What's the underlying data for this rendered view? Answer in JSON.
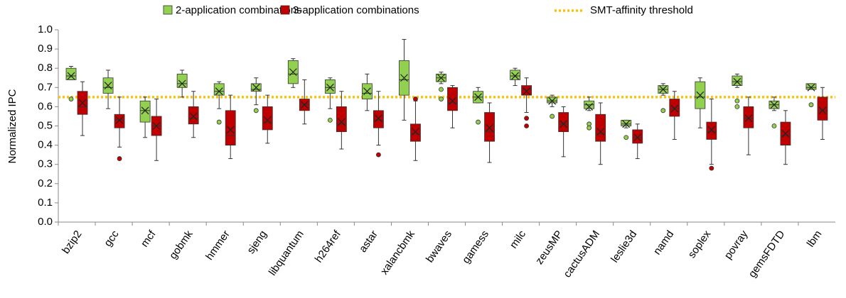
{
  "chart_data": {
    "type": "box",
    "y_label": "Normalized IPC",
    "categories": [
      "bzip2",
      "gcc",
      "mcf",
      "gobmk",
      "hmmer",
      "sjeng",
      "libquantum",
      "h264ref",
      "astar",
      "xalancbmk",
      "bwaves",
      "gamess",
      "milc",
      "zeusMP",
      "cactusADM",
      "leslie3d",
      "namd",
      "soplex",
      "povray",
      "gemsFDTD",
      "lbm"
    ],
    "ylim": [
      0,
      1
    ],
    "yticks": [
      {
        "value": 0,
        "label": "0.0"
      },
      {
        "value": 0.1,
        "label": "0.1"
      },
      {
        "value": 0.2,
        "label": "0.2"
      },
      {
        "value": 0.3,
        "label": "0.3"
      },
      {
        "value": 0.4,
        "label": "0.4"
      },
      {
        "value": 0.5,
        "label": "0.5"
      },
      {
        "value": 0.6,
        "label": "0.6"
      },
      {
        "value": 0.7,
        "label": "0.7"
      },
      {
        "value": 0.8,
        "label": "0.8"
      },
      {
        "value": 0.9,
        "label": "0.9"
      },
      {
        "value": 1,
        "label": "1.0"
      }
    ],
    "threshold": {
      "name": "SMT-affinity threshold",
      "value": 0.65,
      "color": "#ffc000"
    },
    "series": [
      {
        "name": "2-application combinations",
        "color": "#92d050",
        "min": [
          0.74,
          0.59,
          0.44,
          0.65,
          0.59,
          0.61,
          0.7,
          0.59,
          0.58,
          0.53,
          0.72,
          0.62,
          0.71,
          0.6,
          0.58,
          0.49,
          0.66,
          0.49,
          0.7,
          0.58,
          0.69
        ],
        "q1": [
          0.74,
          0.67,
          0.52,
          0.7,
          0.66,
          0.68,
          0.72,
          0.67,
          0.64,
          0.66,
          0.73,
          0.62,
          0.74,
          0.62,
          0.59,
          0.5,
          0.67,
          0.59,
          0.71,
          0.59,
          0.69
        ],
        "median": [
          0.76,
          0.7,
          0.58,
          0.72,
          0.68,
          0.69,
          0.77,
          0.7,
          0.67,
          0.74,
          0.75,
          0.65,
          0.76,
          0.63,
          0.61,
          0.51,
          0.69,
          0.65,
          0.73,
          0.61,
          0.7
        ],
        "q3": [
          0.8,
          0.75,
          0.63,
          0.77,
          0.72,
          0.72,
          0.84,
          0.74,
          0.72,
          0.84,
          0.77,
          0.68,
          0.79,
          0.65,
          0.63,
          0.53,
          0.71,
          0.73,
          0.76,
          0.63,
          0.72
        ],
        "max": [
          0.81,
          0.79,
          0.65,
          0.79,
          0.73,
          0.75,
          0.85,
          0.75,
          0.77,
          0.95,
          0.78,
          0.7,
          0.8,
          0.66,
          0.65,
          0.53,
          0.72,
          0.75,
          0.77,
          0.65,
          0.72
        ],
        "mean": [
          0.76,
          0.71,
          0.58,
          0.72,
          0.68,
          0.7,
          0.78,
          0.7,
          0.68,
          0.75,
          0.75,
          0.65,
          0.76,
          0.63,
          0.6,
          0.51,
          0.69,
          0.66,
          0.73,
          0.61,
          0.7
        ],
        "outliers": [
          [
            0.64
          ],
          [],
          [],
          [],
          [
            0.52
          ],
          [
            0.58
          ],
          [],
          [
            0.53
          ],
          [],
          [],
          [
            0.69,
            0.64
          ],
          [
            0.52
          ],
          [],
          [
            0.55
          ],
          [
            0.51,
            0.49
          ],
          [
            0.44
          ],
          [
            0.58
          ],
          [],
          [
            0.63,
            0.6
          ],
          [
            0.5
          ],
          [
            0.61
          ]
        ]
      },
      {
        "name": "3-application combinations",
        "color": "#c00000",
        "min": [
          0.45,
          0.39,
          0.32,
          0.44,
          0.33,
          0.41,
          0.51,
          0.38,
          0.4,
          0.32,
          0.49,
          0.31,
          0.57,
          0.34,
          0.3,
          0.33,
          0.43,
          0.3,
          0.35,
          0.3,
          0.43
        ],
        "q1": [
          0.56,
          0.49,
          0.45,
          0.51,
          0.4,
          0.48,
          0.58,
          0.47,
          0.49,
          0.42,
          0.58,
          0.42,
          0.66,
          0.47,
          0.42,
          0.41,
          0.55,
          0.43,
          0.49,
          0.4,
          0.53
        ],
        "median": [
          0.6,
          0.53,
          0.5,
          0.54,
          0.45,
          0.52,
          0.61,
          0.51,
          0.53,
          0.46,
          0.62,
          0.47,
          0.69,
          0.51,
          0.46,
          0.44,
          0.59,
          0.47,
          0.54,
          0.45,
          0.58
        ],
        "q3": [
          0.68,
          0.56,
          0.55,
          0.6,
          0.58,
          0.6,
          0.64,
          0.6,
          0.58,
          0.51,
          0.7,
          0.57,
          0.71,
          0.57,
          0.56,
          0.48,
          0.64,
          0.52,
          0.6,
          0.52,
          0.65
        ],
        "max": [
          0.73,
          0.65,
          0.64,
          0.68,
          0.66,
          0.66,
          0.74,
          0.68,
          0.68,
          0.63,
          0.71,
          0.62,
          0.75,
          0.6,
          0.62,
          0.51,
          0.68,
          0.64,
          0.65,
          0.58,
          0.7
        ],
        "mean": [
          0.62,
          0.53,
          0.5,
          0.55,
          0.48,
          0.53,
          0.61,
          0.52,
          0.54,
          0.47,
          0.63,
          0.49,
          0.68,
          0.51,
          0.47,
          0.44,
          0.59,
          0.48,
          0.54,
          0.46,
          0.58
        ],
        "outliers": [
          [],
          [
            0.33
          ],
          [],
          [],
          [],
          [],
          [],
          [],
          [
            0.35
          ],
          [
            0.64
          ],
          [],
          [],
          [
            0.54,
            0.5
          ],
          [],
          [],
          [],
          [],
          [
            0.28
          ],
          [],
          [],
          []
        ]
      }
    ]
  }
}
